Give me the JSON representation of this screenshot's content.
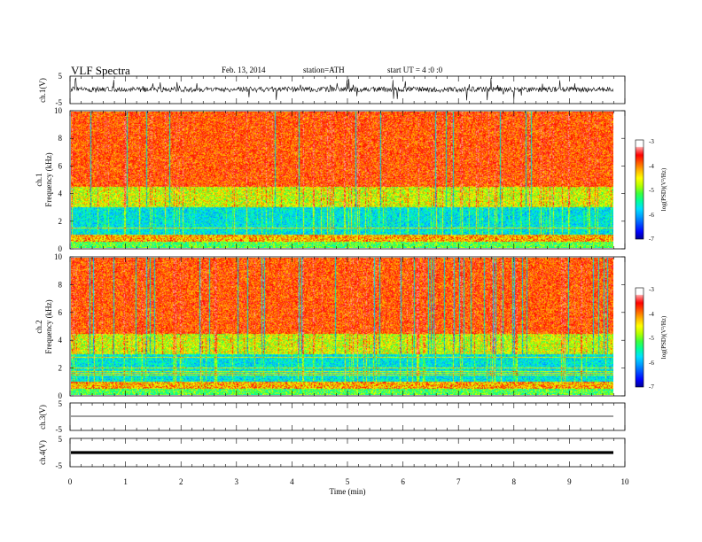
{
  "header": {
    "title": "VLF Spectra",
    "date": "Feb. 13, 2014",
    "station": "station=ATH",
    "start": "start UT = 4 :0 :0"
  },
  "chart_data": [
    {
      "type": "line",
      "panel": "ch1-waveform",
      "ylabel": "ch.1(V)",
      "ylim": [
        -5,
        5
      ],
      "yticks": [
        "5",
        "-5"
      ],
      "xlim": [
        0,
        10
      ],
      "note_seed": 11
    },
    {
      "type": "heatmap",
      "panel": "ch1-spectrogram",
      "ylabel": [
        "ch.1",
        "Frequency (kHz)"
      ],
      "ylim": [
        0,
        10
      ],
      "yticks": [
        "0",
        "2",
        "4",
        "6",
        "8",
        "10"
      ],
      "xlim": [
        0,
        9.8
      ],
      "colorbar": {
        "label": "log(PSD)(V²/Hz)",
        "range": [
          -7,
          -3
        ],
        "ticks": [
          "-3",
          "-4",
          "-5",
          "-6",
          "-7"
        ]
      },
      "seed": 3
    },
    {
      "type": "heatmap",
      "panel": "ch2-spectrogram",
      "ylabel": [
        "ch.2",
        "Frequency (kHz)"
      ],
      "ylim": [
        0,
        10
      ],
      "yticks": [
        "0",
        "2",
        "4",
        "6",
        "8",
        "10"
      ],
      "xlim": [
        0,
        9.8
      ],
      "colorbar": {
        "label": "log(PSD)(V²/Hz)",
        "range": [
          -7,
          -3
        ],
        "ticks": [
          "-3",
          "-4",
          "-5",
          "-6",
          "-7"
        ]
      },
      "seed": 7
    },
    {
      "type": "line",
      "panel": "ch3-waveform",
      "ylabel": "ch.3(V)",
      "ylim": [
        -5,
        5
      ],
      "yticks": [
        "5",
        "-5"
      ],
      "level": 0
    },
    {
      "type": "line",
      "panel": "ch4-waveform",
      "ylabel": "ch.4(V)",
      "ylim": [
        -5,
        5
      ],
      "yticks": [
        "5",
        "-5"
      ],
      "level": 0
    }
  ],
  "xaxis": {
    "label": "Time (min)",
    "range": [
      0,
      10
    ],
    "ticks": [
      "0",
      "1",
      "2",
      "3",
      "4",
      "5",
      "6",
      "7",
      "8",
      "9",
      "10"
    ]
  },
  "colors": {
    "colormap": [
      "#00008c",
      "#0000ff",
      "#0050ff",
      "#00a0ff",
      "#00e0ff",
      "#00ff9c",
      "#3cff3c",
      "#b4ff00",
      "#ffff00",
      "#ffb400",
      "#ff5a00",
      "#ff0000",
      "#ffa0a0",
      "#ffffff"
    ],
    "trace": "#000000"
  }
}
